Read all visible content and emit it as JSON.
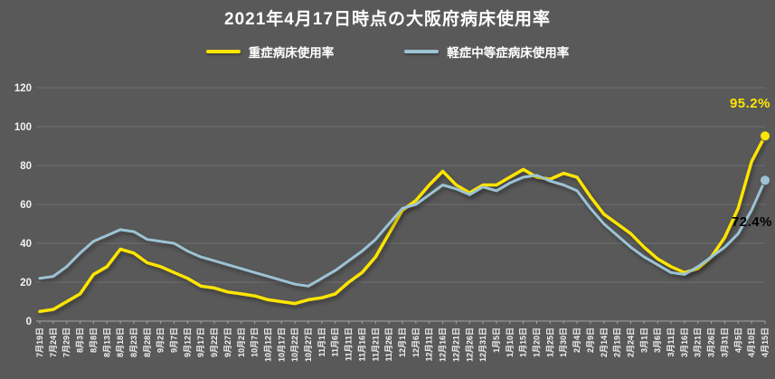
{
  "chart_data": {
    "type": "line",
    "title": "2021年4月17日時点の大阪府病床使用率",
    "background": "#595959",
    "grid": true,
    "grid_color": "#6f6f6f",
    "axis_color": "#a6a6a6",
    "tick_color": "#f2f2f2",
    "legend_position": "top",
    "ylim": [
      0,
      120
    ],
    "yticks": [
      0,
      20,
      40,
      60,
      80,
      100,
      120
    ],
    "categories": [
      "7月19日",
      "7月24日",
      "7月29日",
      "8月3日",
      "8月8日",
      "8月13日",
      "8月18日",
      "8月23日",
      "8月28日",
      "9月2日",
      "9月7日",
      "9月12日",
      "9月17日",
      "9月22日",
      "9月27日",
      "10月2日",
      "10月7日",
      "10月12日",
      "10月17日",
      "10月22日",
      "10月27日",
      "11月1日",
      "11月6日",
      "11月11日",
      "11月16日",
      "11月21日",
      "11月26日",
      "12月1日",
      "12月6日",
      "12月11日",
      "12月16日",
      "12月21日",
      "12月26日",
      "12月31日",
      "1月5日",
      "1月10日",
      "1月15日",
      "1月20日",
      "1月25日",
      "1月30日",
      "2月4日",
      "2月9日",
      "2月14日",
      "2月19日",
      "2月24日",
      "3月1日",
      "3月6日",
      "3月11日",
      "3月16日",
      "3月21日",
      "3月26日",
      "3月31日",
      "4月5日",
      "4月10日",
      "4月15日"
    ],
    "series": [
      {
        "name": "重症病床使用率",
        "color": "#ffe500",
        "stroke_width": 3.5,
        "values": [
          5,
          6,
          10,
          14,
          24,
          28,
          37,
          35,
          30,
          28,
          25,
          22,
          18,
          17,
          15,
          14,
          13,
          11,
          10,
          9,
          11,
          12,
          14,
          20,
          25,
          33,
          45,
          57,
          62,
          70,
          77,
          70,
          66,
          70,
          70,
          74,
          78,
          74,
          73,
          76,
          74,
          64,
          55,
          50,
          45,
          38,
          32,
          28,
          25,
          27,
          33,
          43,
          58,
          82,
          95.2
        ]
      },
      {
        "name": "軽症中等症病床使用率",
        "color": "#9cc3d5",
        "stroke_width": 3,
        "values": [
          22,
          23,
          28,
          35,
          41,
          44,
          47,
          46,
          42,
          41,
          40,
          36,
          33,
          31,
          29,
          27,
          25,
          23,
          21,
          19,
          18,
          22,
          26,
          31,
          36,
          42,
          50,
          58,
          60,
          65,
          70,
          68,
          65,
          69,
          67,
          71,
          74,
          75,
          72,
          70,
          67,
          58,
          50,
          44,
          38,
          33,
          29,
          25,
          24,
          28,
          33,
          38,
          45,
          57,
          72.4
        ]
      }
    ],
    "annotations": [
      {
        "text": "95.2%",
        "color": "#ffe500"
      },
      {
        "text": "72.4%",
        "color": "#000000"
      }
    ]
  }
}
